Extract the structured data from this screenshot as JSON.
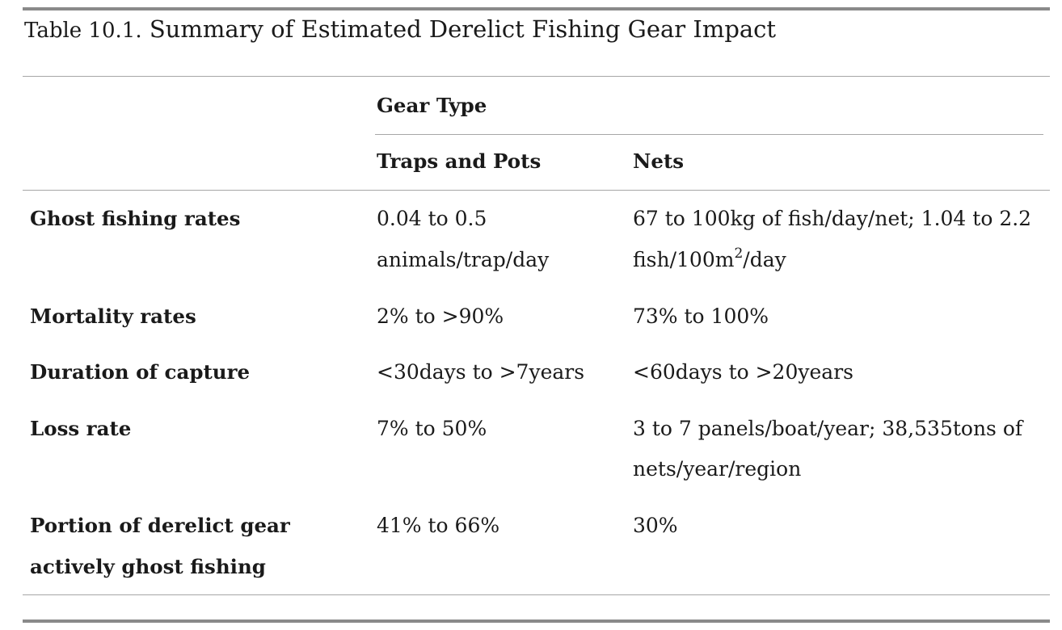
{
  "caption": {
    "label": "Table 10.1.",
    "title": "Summary of Estimated Derelict Fishing Gear Impact"
  },
  "table": {
    "group_header": "Gear Type",
    "column_headers": [
      "Traps and Pots",
      "Nets"
    ],
    "rows": [
      {
        "label_lines": [
          "Ghost fishing rates"
        ],
        "traps_lines": [
          "0.04 to 0.5",
          "animals/trap/day"
        ],
        "nets_lines": [
          "67 to 100kg of fish/day/net; 1.04 to 2.2",
          "fish/100m"
        ],
        "nets_superscript": "2",
        "nets_suffix": "/day"
      },
      {
        "label_lines": [
          "Mortality rates"
        ],
        "traps_lines": [
          "2% to >90%"
        ],
        "nets_lines": [
          "73% to 100%"
        ]
      },
      {
        "label_lines": [
          "Duration of capture"
        ],
        "traps_lines": [
          "<30days to >7years"
        ],
        "nets_lines": [
          "<60days to >20years"
        ]
      },
      {
        "label_lines": [
          "Loss rate"
        ],
        "traps_lines": [
          "7% to 50%"
        ],
        "nets_lines": [
          "3 to 7 panels/boat/year; 38,535tons of",
          "nets/year/region"
        ]
      },
      {
        "label_lines": [
          "Portion of derelict gear",
          "actively ghost fishing"
        ],
        "traps_lines": [
          "41% to 66%"
        ],
        "nets_lines": [
          "30%"
        ]
      }
    ]
  }
}
